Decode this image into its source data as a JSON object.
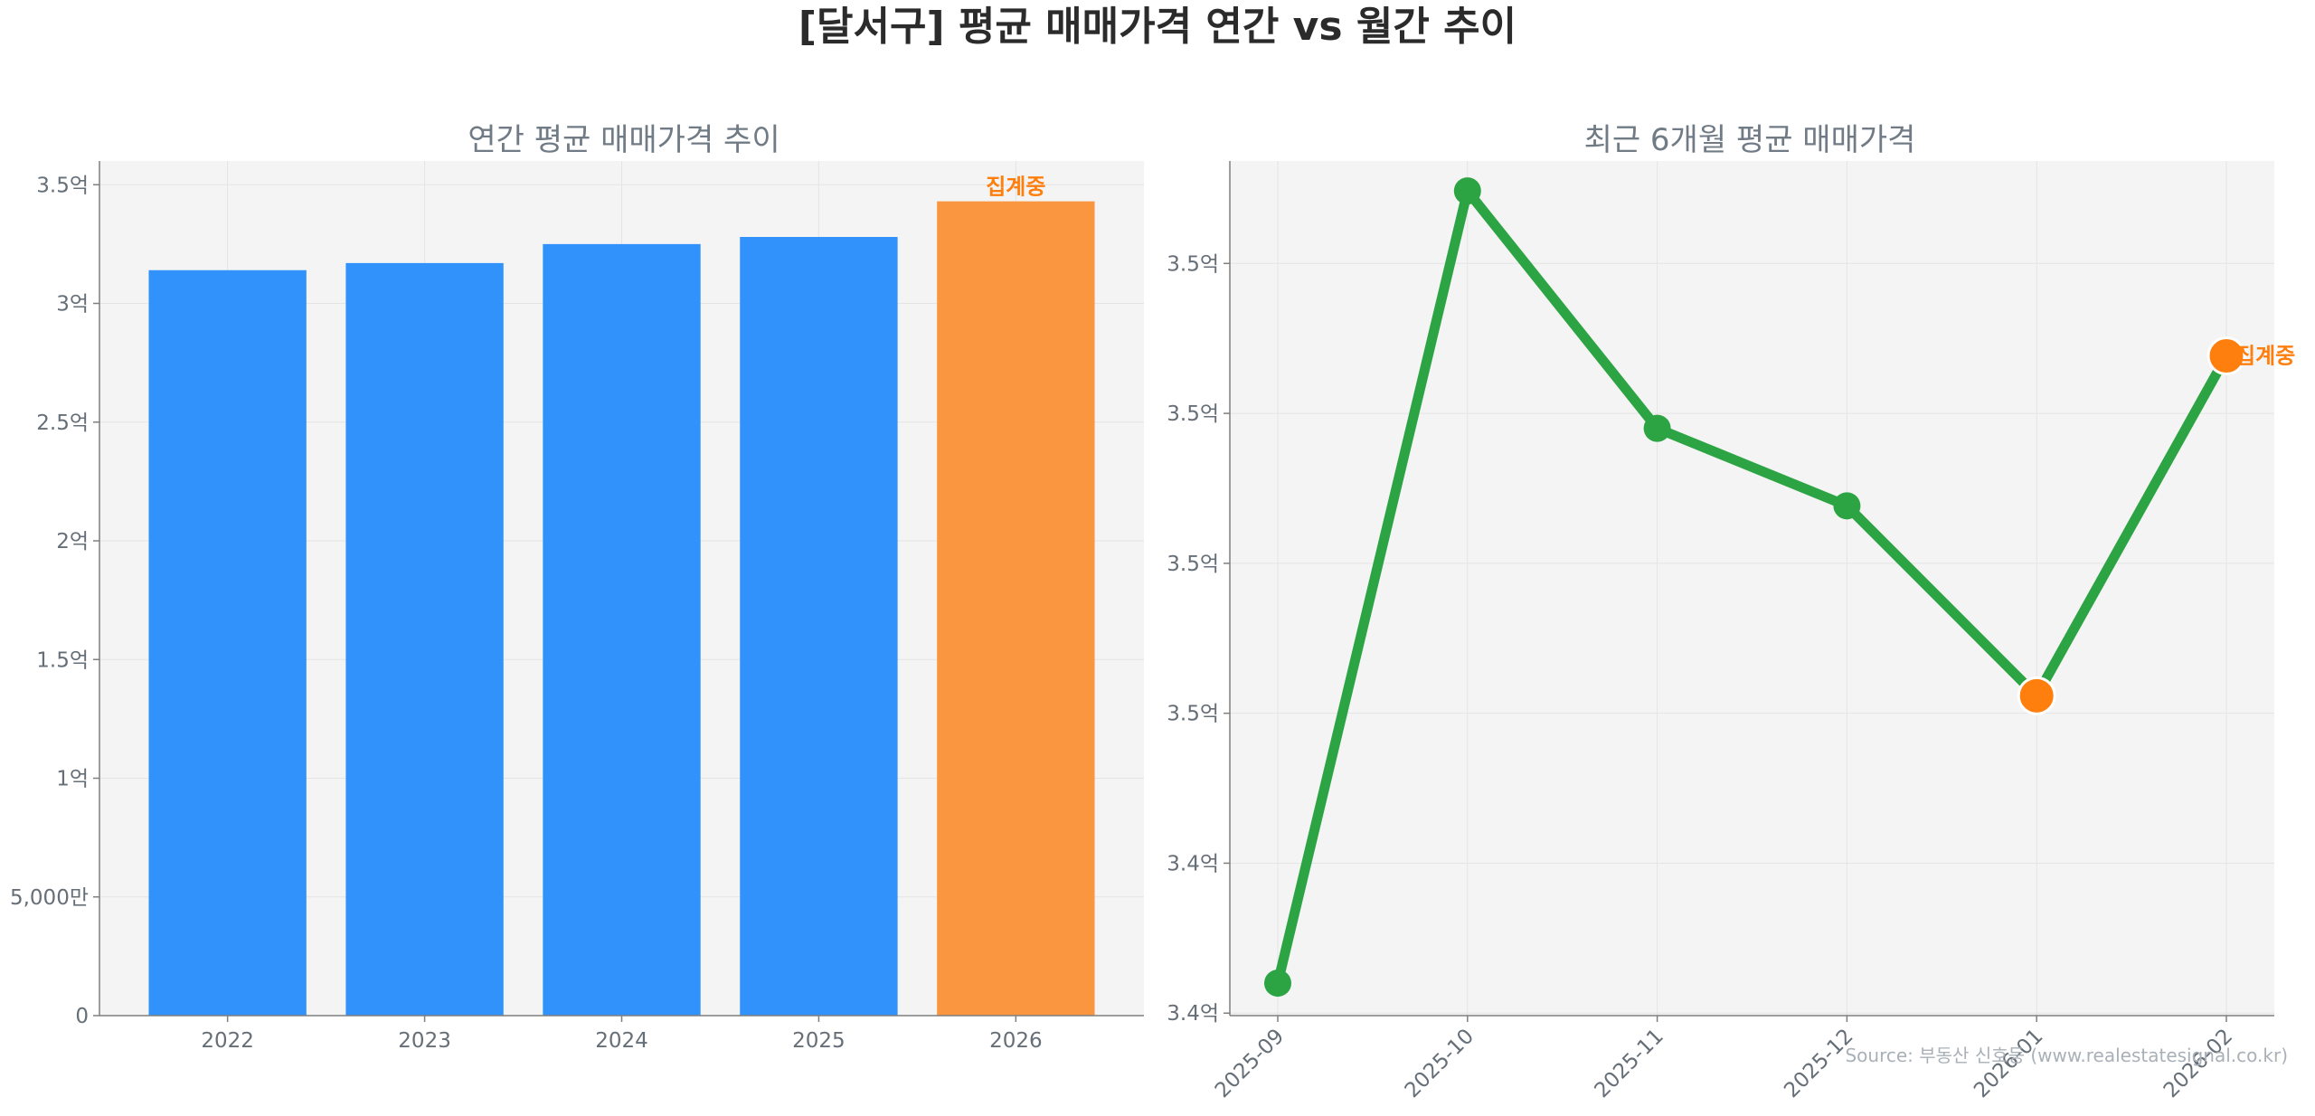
{
  "title": "[달서구] 평균 매매가격 연간 vs 월간 추이",
  "source": "Source: 부동산 신호등 (www.realestatesignal.co.kr)",
  "colors": {
    "bar": "#3192fb",
    "bar_highlight": "#f9963f",
    "line": "#2ca444",
    "point_highlight": "#ff7f0e",
    "plot_bg": "#f4f4f4",
    "grid": "#e4e4e4",
    "axis": "#7f7f7f"
  },
  "chart_data": [
    {
      "type": "bar",
      "title": "연간 평균 매매가격 추이",
      "categories": [
        "2022",
        "2023",
        "2024",
        "2025",
        "2026"
      ],
      "values": [
        31400,
        31700,
        32500,
        32800,
        34300
      ],
      "unit": "만원",
      "highlight_index": 4,
      "annotation": "집계중",
      "ylim": [
        0,
        36000
      ],
      "yticks": [
        0,
        5000,
        10000,
        15000,
        20000,
        25000,
        30000,
        35000
      ],
      "ytick_labels": [
        "0",
        "5,000만",
        "1억",
        "1.5억",
        "2억",
        "2.5억",
        "3억",
        "3.5억"
      ],
      "grid": true
    },
    {
      "type": "line",
      "title": "최근 6개월 평균 매매가격",
      "categories": [
        "2025-09",
        "2025-10",
        "2025-11",
        "2025-12",
        "2026-01",
        "2026-02"
      ],
      "values": [
        34185,
        35770,
        35295,
        35140,
        34760,
        35440
      ],
      "unit": "만원",
      "highlight_indices": [
        4,
        5
      ],
      "annotation": "집계중",
      "annotation_index": 5,
      "ylim": [
        34120,
        35830
      ],
      "yticks": [
        34125,
        34425,
        34725,
        35025,
        35325,
        35625
      ],
      "ytick_labels": [
        "3.4억",
        "3.4억",
        "3.5억",
        "3.5억",
        "3.5억",
        "3.5억"
      ],
      "grid": true
    }
  ]
}
